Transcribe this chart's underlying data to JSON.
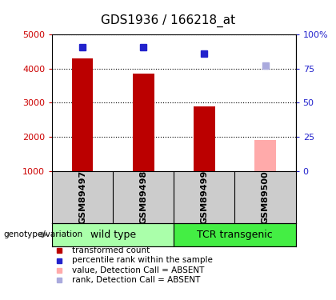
{
  "title": "GDS1936 / 166218_at",
  "samples": [
    "GSM89497",
    "GSM89498",
    "GSM89499",
    "GSM89500"
  ],
  "bar_values": [
    4300,
    3850,
    2900,
    1900
  ],
  "bar_colors": [
    "#bb0000",
    "#bb0000",
    "#bb0000",
    "#ffaaaa"
  ],
  "rank_values": [
    4620,
    4620,
    4430,
    4100
  ],
  "rank_colors": [
    "#2222cc",
    "#2222cc",
    "#2222cc",
    "#aaaadd"
  ],
  "ylim_left": [
    1000,
    5000
  ],
  "ylim_right": [
    0,
    100
  ],
  "yticks_left": [
    1000,
    2000,
    3000,
    4000,
    5000
  ],
  "yticks_right": [
    0,
    25,
    50,
    75,
    100
  ],
  "ytick_labels_right": [
    "0",
    "25",
    "50",
    "75",
    "100%"
  ],
  "groups": [
    {
      "label": "wild type",
      "samples": [
        0,
        1
      ],
      "color": "#aaffaa"
    },
    {
      "label": "TCR transgenic",
      "samples": [
        2,
        3
      ],
      "color": "#44ee44"
    }
  ],
  "group_label": "genotype/variation",
  "legend_items": [
    {
      "label": "transformed count",
      "color": "#bb0000"
    },
    {
      "label": "percentile rank within the sample",
      "color": "#2222cc"
    },
    {
      "label": "value, Detection Call = ABSENT",
      "color": "#ffaaaa"
    },
    {
      "label": "rank, Detection Call = ABSENT",
      "color": "#aaaadd"
    }
  ],
  "bar_width": 0.35,
  "left_axis_color": "#cc0000",
  "right_axis_color": "#2222cc",
  "tick_label_fontsize": 8,
  "title_fontsize": 11,
  "sample_label_fontsize": 8,
  "group_label_fontsize": 9
}
